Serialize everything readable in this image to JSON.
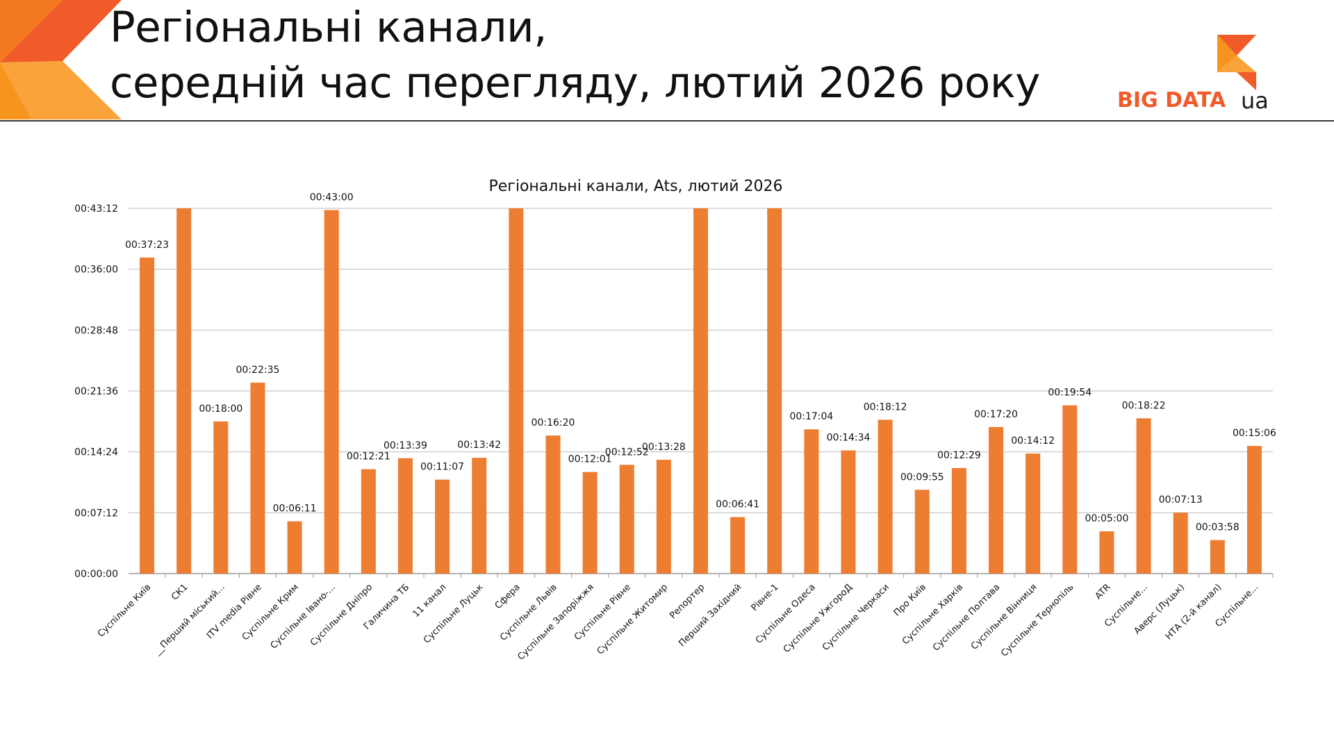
{
  "header": {
    "title_line1": "Регіональні канали,",
    "title_line2": "середній час перегляду, лютий 2026 року",
    "logo_text_main": "BIG DATA",
    "logo_text_suffix": "ua"
  },
  "colors": {
    "bar": "#ED7D31",
    "grid": "#D0D0D0",
    "logo_orange": "#F15A29",
    "logo_light": "#F7941D"
  },
  "chart_data": {
    "type": "bar",
    "title": "Регіональні канали, Ats, лютий 2026",
    "xlabel": "",
    "ylabel": "",
    "ylim_seconds": [
      0,
      2592
    ],
    "yticks": [
      "00:00:00",
      "00:07:12",
      "00:14:24",
      "00:21:36",
      "00:28:48",
      "00:36:00",
      "00:43:12"
    ],
    "grid": true,
    "legend": "none",
    "categories": [
      "Суспільне Київ",
      "СК1",
      "__Перший міський...",
      "ITV media Рівне",
      "Суспільне Крим",
      "Суспільне Івано-...",
      "Суспільне Дніпро",
      "Галичина ТБ",
      "11 канал",
      "Суспільне Луцьк",
      "Сфера",
      "Суспільне Львів",
      "Суспільне Запоріжжя",
      "Суспільне Рівне",
      "Суспільне Житомир",
      "Репортер",
      "Перший Західний",
      "Рівне-1",
      "Суспільне Одеса",
      "Суспільне УжгороД",
      "Суспільне Черкаси",
      "Про Київ",
      "Суспільне Харків",
      "Суспільне Полтава",
      "Суспільне Вінниця",
      "Суспільне Тернопіль",
      "ATR",
      "Суспільне...",
      "Аверс (Луцьк)",
      "НТА (2-й канал)",
      "Суспільне..."
    ],
    "values_seconds": [
      2243,
      2592,
      1080,
      1355,
      371,
      2580,
      741,
      819,
      667,
      822,
      2592,
      980,
      721,
      772,
      808,
      2592,
      401,
      2592,
      1024,
      874,
      1092,
      595,
      749,
      1040,
      852,
      1194,
      300,
      1102,
      433,
      238,
      906
    ],
    "value_labels": [
      "00:37:23",
      "",
      "00:18:00",
      "00:22:35",
      "00:06:11",
      "00:43:00",
      "00:12:21",
      "00:13:39",
      "00:11:07",
      "00:13:42",
      "",
      "00:16:20",
      "00:12:01",
      "00:12:52",
      "00:13:28",
      "",
      "00:06:41",
      "",
      "00:17:04",
      "00:14:34",
      "00:18:12",
      "00:09:55",
      "00:12:29",
      "00:17:20",
      "00:14:12",
      "00:19:54",
      "00:05:00",
      "00:18:22",
      "00:07:13",
      "00:03:58",
      "00:15:06"
    ]
  }
}
